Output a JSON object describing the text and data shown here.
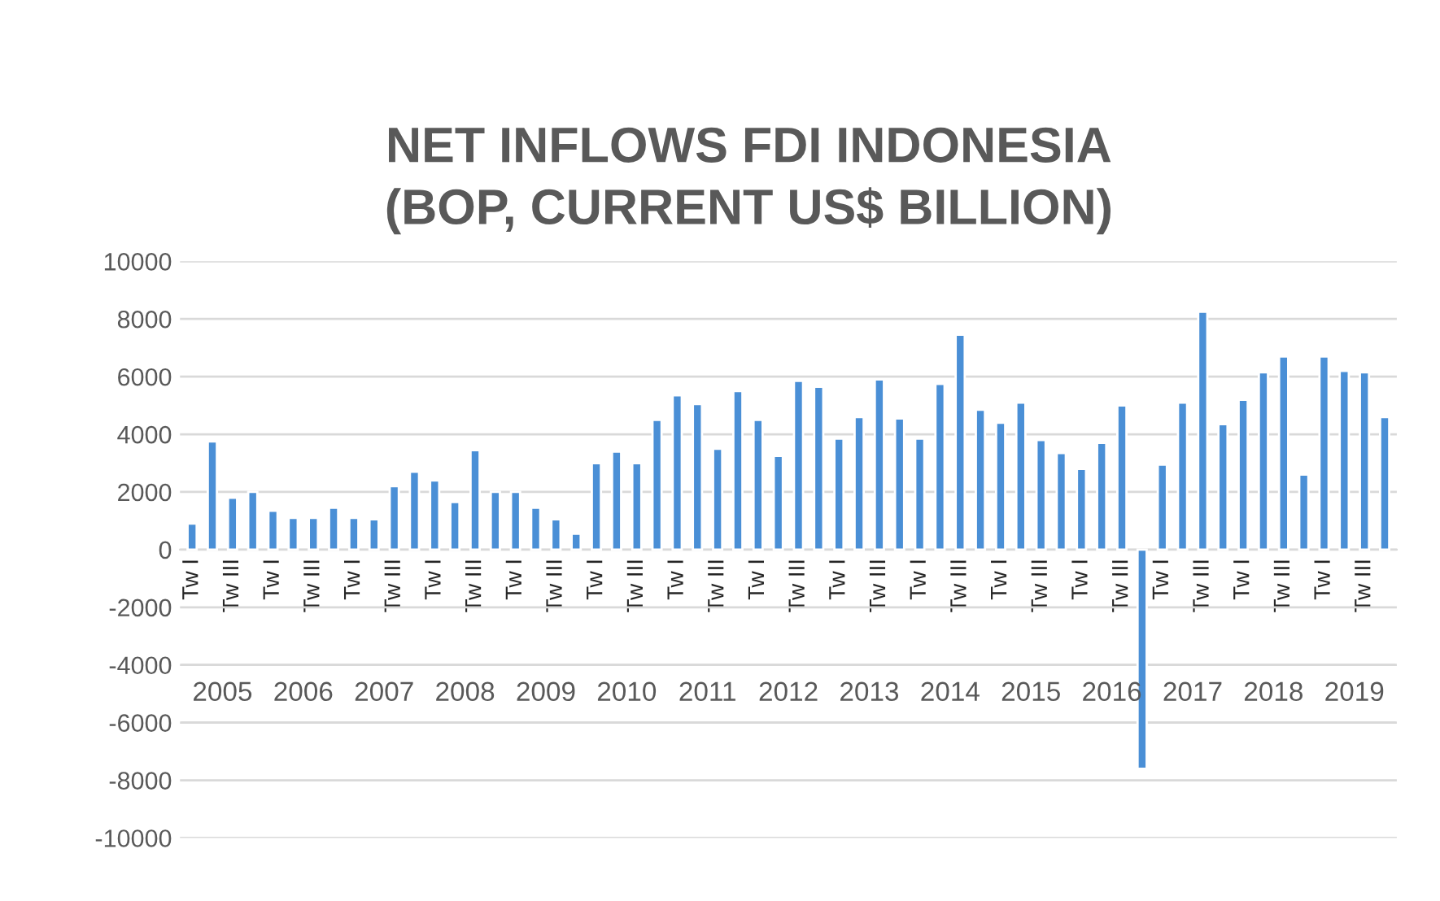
{
  "chart_data": {
    "type": "bar",
    "title": "NET INFLOWS FDI INDONESIA\n(BOP, CURRENT US$ BILLION)",
    "categories": [
      "Tw I",
      null,
      "Tw III",
      null,
      "Tw I",
      null,
      "Tw III",
      null,
      "Tw I",
      null,
      "Tw III",
      null,
      "Tw I",
      null,
      "Tw III",
      null,
      "Tw I",
      null,
      "Tw III",
      null,
      "Tw I",
      null,
      "Tw III",
      null,
      "Tw I",
      null,
      "Tw III",
      null,
      "Tw I",
      null,
      "Tw III",
      null,
      "Tw I",
      null,
      "Tw III",
      null,
      "Tw I",
      null,
      "Tw III",
      null,
      "Tw I",
      null,
      "Tw III",
      null,
      "Tw I",
      null,
      "Tw III",
      null,
      "Tw I",
      null,
      "Tw III",
      null,
      "Tw I",
      null,
      "Tw III",
      null,
      "Tw I",
      null,
      "Tw III",
      null
    ],
    "values": [
      900,
      3750,
      1800,
      2000,
      1350,
      1100,
      1100,
      1450,
      1100,
      1050,
      2200,
      2700,
      2400,
      1650,
      3450,
      2000,
      2000,
      1450,
      1050,
      550,
      3000,
      3400,
      3000,
      4500,
      5350,
      5050,
      3500,
      5500,
      4500,
      3250,
      5850,
      5650,
      3850,
      4600,
      5900,
      4550,
      3850,
      5750,
      7450,
      4850,
      4400,
      5100,
      3800,
      3350,
      2800,
      3700,
      5000,
      -7600,
      2950,
      5100,
      8250,
      4350,
      5200,
      6150,
      6700,
      2600,
      6700,
      6200,
      6150,
      4600
    ],
    "color": "#4a8fd6",
    "annotations": [
      "2005",
      "2006",
      "2007",
      "2008",
      "2009",
      "2010",
      "2011",
      "2012",
      "2013",
      "2014",
      "2015",
      "2016",
      "2017",
      "2018",
      "2019"
    ],
    "ylim": [
      -10000,
      10000
    ],
    "yticks": [
      -10000,
      -8000,
      -6000,
      -4000,
      -2000,
      0,
      2000,
      4000,
      6000,
      8000,
      10000
    ],
    "grid": "y",
    "legend": false
  }
}
